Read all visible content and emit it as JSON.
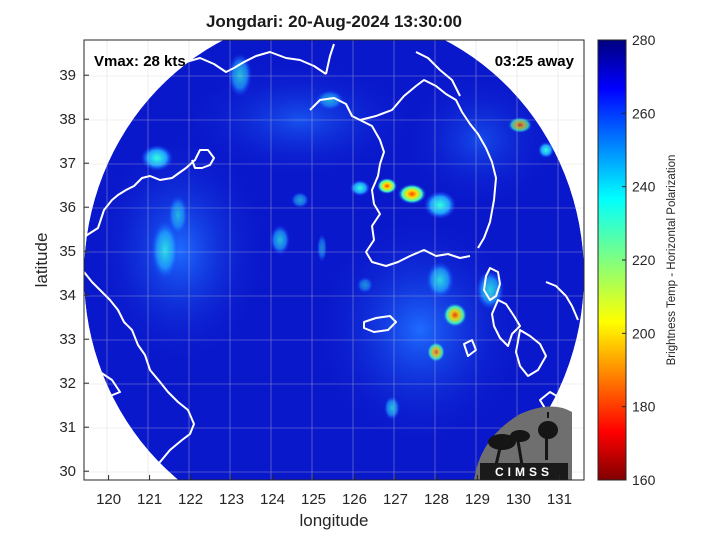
{
  "title": "Jongdari: 20-Aug-2024 13:30:00",
  "annotations": {
    "vmax": "Vmax: 28 kts",
    "time_away": "03:25 away"
  },
  "axes": {
    "xlabel": "longitude",
    "ylabel": "latitude",
    "xlim": [
      119.4,
      131.6
    ],
    "ylim": [
      29.8,
      39.8
    ],
    "xticks": [
      "120",
      "121",
      "122",
      "123",
      "124",
      "125",
      "126",
      "127",
      "128",
      "129",
      "130",
      "131"
    ],
    "yticks": [
      "30",
      "31",
      "32",
      "33",
      "34",
      "35",
      "36",
      "37",
      "38",
      "39"
    ],
    "grid": true
  },
  "colorbar": {
    "label": "Brightness Temp - Horizontal Polarization",
    "range": [
      160,
      280
    ],
    "ticks": [
      "280",
      "260",
      "240",
      "220",
      "200",
      "180",
      "160"
    ],
    "colormap": "jet"
  },
  "logo": {
    "text": "CIMSS"
  },
  "colors": {
    "background": "#0a14c8",
    "coastline": "#ffffff",
    "outside_swath": "#ffffff"
  }
}
